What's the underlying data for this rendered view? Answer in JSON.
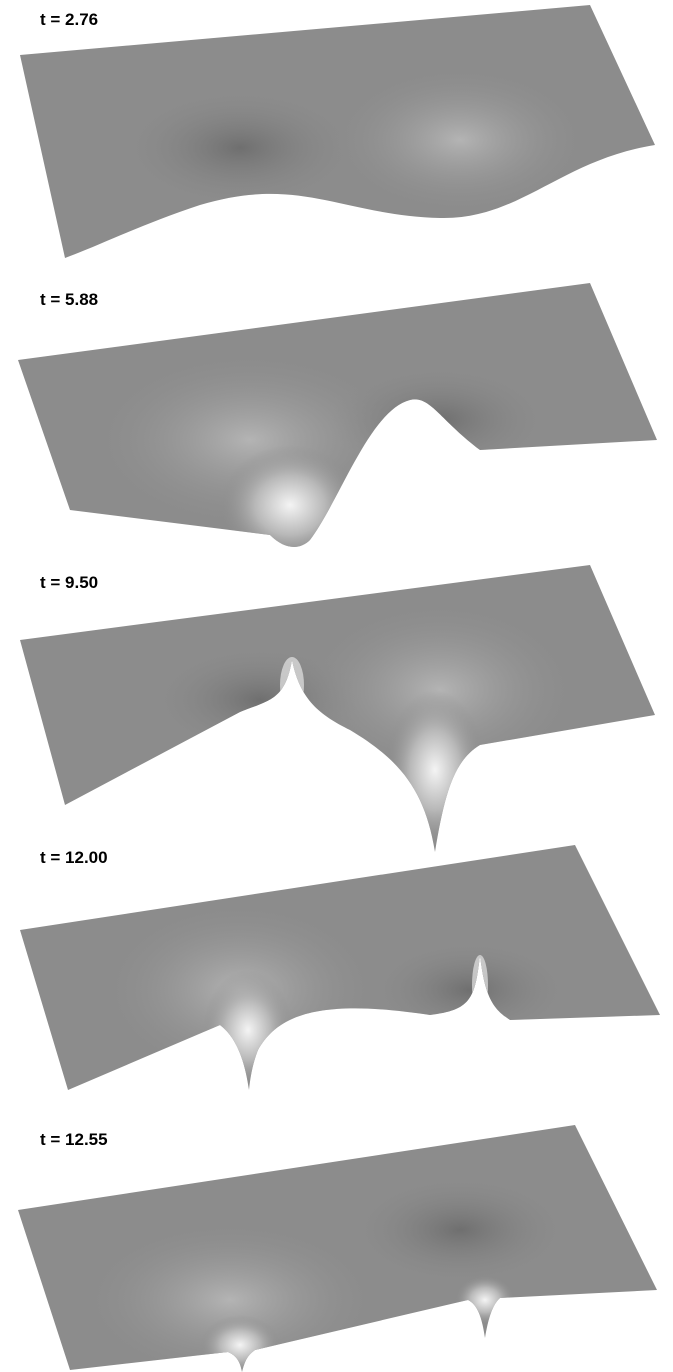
{
  "panels": [
    {
      "label": "t = 2.76"
    },
    {
      "label": "t = 5.88"
    },
    {
      "label": "t = 9.50"
    },
    {
      "label": "t = 12.00"
    },
    {
      "label": "t = 12.55"
    }
  ]
}
